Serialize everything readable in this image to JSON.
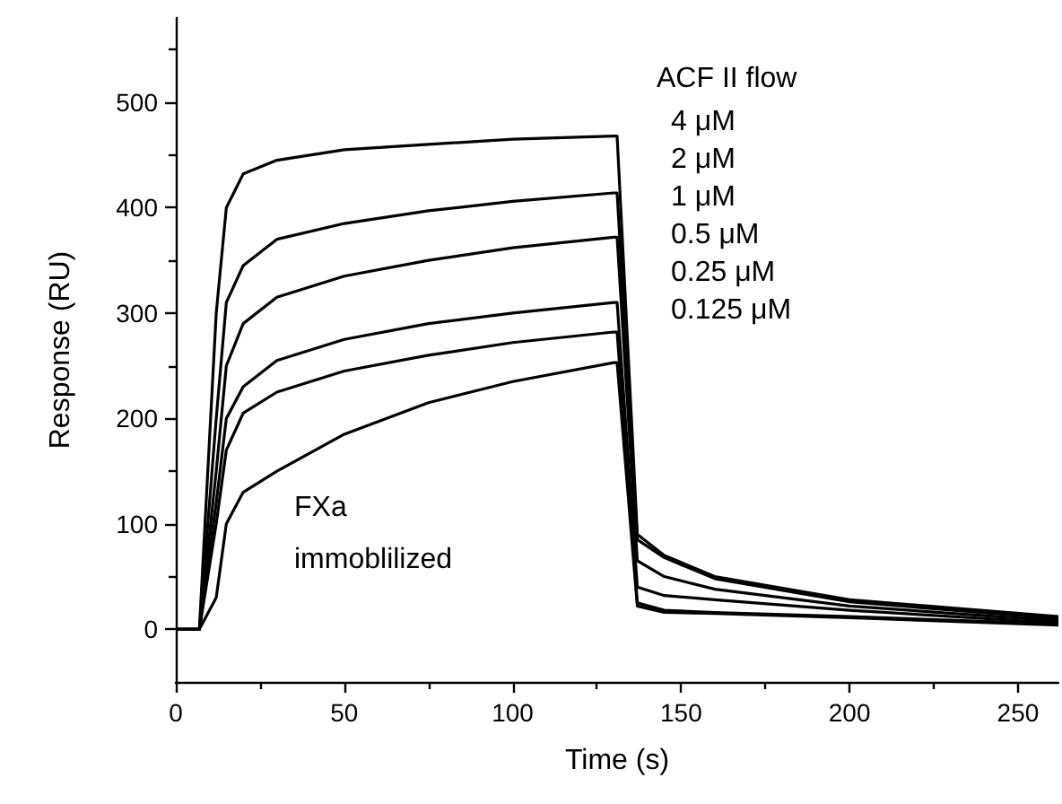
{
  "chart_data": {
    "type": "line",
    "xlabel": "Time (s)",
    "ylabel": "Response (RU)",
    "x": [
      0,
      7,
      12,
      15,
      20,
      30,
      50,
      75,
      100,
      130,
      131,
      137,
      145,
      160,
      200,
      262
    ],
    "series": [
      {
        "color": "#000000",
        "values": [
          0,
          0,
          300,
          400,
          432,
          445,
          455,
          460,
          465,
          468,
          468,
          90,
          70,
          50,
          28,
          12
        ]
      },
      {
        "color": "#000000",
        "values": [
          0,
          0,
          200,
          310,
          345,
          370,
          385,
          397,
          406,
          414,
          414,
          85,
          68,
          48,
          26,
          10
        ]
      },
      {
        "color": "#000000",
        "values": [
          0,
          0,
          150,
          250,
          290,
          315,
          335,
          350,
          362,
          372,
          372,
          65,
          50,
          38,
          22,
          8
        ]
      },
      {
        "color": "#000000",
        "values": [
          0,
          0,
          120,
          200,
          230,
          255,
          275,
          290,
          300,
          310,
          310,
          40,
          32,
          28,
          18,
          6
        ]
      },
      {
        "color": "#000000",
        "values": [
          0,
          0,
          100,
          170,
          205,
          225,
          245,
          260,
          272,
          282,
          282,
          25,
          18,
          16,
          12,
          5
        ]
      },
      {
        "color": "#000000",
        "values": [
          0,
          0,
          30,
          100,
          130,
          150,
          185,
          215,
          235,
          253,
          253,
          22,
          16,
          15,
          11,
          4
        ]
      }
    ],
    "xlim": [
      0,
      262
    ],
    "xticks": [
      0,
      50,
      100,
      150,
      200,
      250
    ],
    "ylim": [
      -50,
      580
    ],
    "yticks": [
      0,
      100,
      200,
      300,
      400,
      500
    ],
    "annotations": [
      "ACF II flow",
      "4 μM",
      "2 μM",
      "1 μM",
      "0.5 μM",
      "0.25 μM",
      "0.125 μM",
      "FXa",
      "immoblilized"
    ],
    "grid": false,
    "marker": "none",
    "line_style": "solid"
  }
}
